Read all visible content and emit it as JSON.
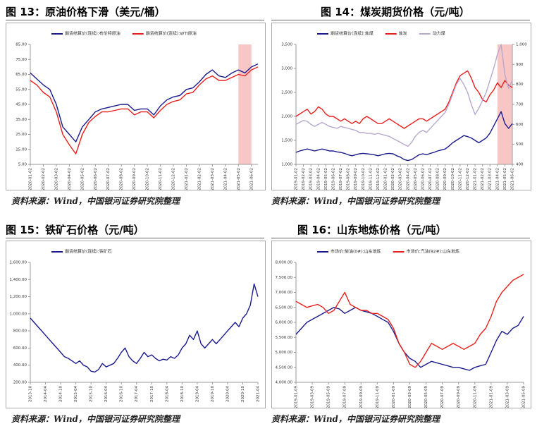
{
  "chart_data": [
    {
      "type": "line",
      "title": "图 13：原油价格下滑（美元/桶）",
      "source": "资料来源：Wind，中国银河证券研究院整理",
      "legend": "top",
      "categories": [
        "2020-01-02",
        null,
        "2020-02-02",
        null,
        "2020-03-02",
        null,
        "2020-04-02",
        null,
        "2020-05-02",
        null,
        "2020-06-02",
        null,
        "2020-07-02",
        null,
        "2020-08-02",
        null,
        "2020-09-02",
        null,
        "2020-10-02",
        null,
        "2020-11-02",
        null,
        "2020-12-02",
        null,
        "2021-01-02",
        null,
        "2021-02-02",
        null,
        "2021-03-02",
        null,
        "2021-04-02",
        null,
        "2021-05-02",
        null,
        "2021-06-02",
        null
      ],
      "series": [
        {
          "name": "期货结算价(连续):布伦特原油",
          "color": "#1a1a8c",
          "values": [
            66,
            62,
            58,
            55,
            45,
            30,
            25,
            20,
            30,
            35,
            40,
            42,
            43,
            44,
            45,
            45,
            41,
            42,
            42,
            38,
            44,
            48,
            50,
            51,
            55,
            56,
            60,
            65,
            68,
            64,
            63,
            66,
            68,
            66,
            70,
            72
          ]
        },
        {
          "name": "期货结算价(连续):WTI原油",
          "color": "#e8201c",
          "values": [
            61,
            58,
            53,
            50,
            40,
            25,
            18,
            12,
            25,
            33,
            37,
            40,
            40,
            41,
            42,
            42,
            38,
            40,
            40,
            36,
            41,
            45,
            47,
            48,
            52,
            53,
            58,
            62,
            64,
            61,
            61,
            63,
            65,
            64,
            68,
            70
          ]
        }
      ],
      "ylim": [
        5,
        85
      ],
      "yticks": [
        {
          "value": 5,
          "label": "5.00"
        },
        {
          "value": 15,
          "label": "15.00"
        },
        {
          "value": 25,
          "label": "25.00"
        },
        {
          "value": 35,
          "label": "35.00"
        },
        {
          "value": 45,
          "label": "45.00"
        },
        {
          "value": 55,
          "label": "55.00"
        },
        {
          "value": 65,
          "label": "65.00"
        },
        {
          "value": 75,
          "label": "75.00"
        },
        {
          "value": 85,
          "label": "85.00"
        }
      ],
      "highlight": [
        "2021-05-02",
        "2021-06-02"
      ],
      "highlight_color": "#f7b8b8"
    },
    {
      "type": "line",
      "title": "图 14：煤炭期货价格（元/吨）",
      "source": "资料来源：Wind，中国银河证券研究院整理",
      "legend": "top",
      "categories": [
        "2019-01-02",
        null,
        "2019-02-02",
        null,
        "2019-03-02",
        null,
        "2019-04-02",
        null,
        "2019-05-02",
        null,
        "2019-06-02",
        null,
        "2019-07-02",
        null,
        "2019-08-02",
        null,
        "2019-09-02",
        null,
        "2019-10-02",
        null,
        "2019-11-02",
        null,
        "2019-12-02",
        null,
        "2020-01-02",
        null,
        "2020-02-02",
        null,
        "2020-03-02",
        null,
        "2020-04-02",
        null,
        "2020-05-02",
        null,
        "2020-06-02",
        null,
        "2020-07-02",
        null,
        "2020-08-02",
        null,
        "2020-09-02",
        null,
        "2020-10-02",
        null,
        "2020-11-02",
        null,
        "2020-12-02",
        null,
        "2021-01-02",
        null,
        "2021-02-02",
        null,
        "2021-03-02",
        null,
        "2021-04-02",
        null,
        "2021-05-02",
        null,
        "2021-06-02"
      ],
      "series": [
        {
          "name": "期货结算价(连续):焦煤",
          "color": "#1a1a8c",
          "values": [
            1250,
            1280,
            1300,
            1320,
            1300,
            1280,
            1300,
            1320,
            1300,
            1280,
            1280,
            1260,
            1250,
            1230,
            1200,
            1180,
            1200,
            1220,
            1230,
            1220,
            1210,
            1200,
            1180,
            1200,
            1220,
            1230,
            1220,
            1180,
            1150,
            1100,
            1080,
            1100,
            1150,
            1200,
            1220,
            1200,
            1230,
            1250,
            1280,
            1300,
            1320,
            1380,
            1450,
            1500,
            1550,
            1600,
            1580,
            1550,
            1500,
            1450,
            1500,
            1550,
            1650,
            1800,
            1950,
            2100,
            1850,
            1750,
            1850
          ]
        },
        {
          "name": "焦炭",
          "color": "#e8201c",
          "values": [
            2000,
            2050,
            2100,
            2150,
            2050,
            2100,
            2200,
            2150,
            2050,
            2000,
            2000,
            1950,
            1900,
            1950,
            1900,
            1850,
            1900,
            1850,
            1950,
            2000,
            1950,
            1900,
            1850,
            1850,
            1900,
            1950,
            1900,
            1850,
            1800,
            1750,
            1800,
            1850,
            1900,
            1950,
            1950,
            1900,
            1950,
            2000,
            2050,
            2100,
            2150,
            2300,
            2500,
            2700,
            2850,
            2900,
            2950,
            2800,
            2600,
            2500,
            2350,
            2300,
            2450,
            2550,
            2700,
            2600,
            2750,
            2650,
            2600
          ]
        },
        {
          "name": "动力煤",
          "color": "#b8a8d0",
          "axis": "y2",
          "values": [
            600,
            610,
            620,
            615,
            600,
            590,
            600,
            610,
            600,
            590,
            585,
            580,
            590,
            585,
            580,
            575,
            570,
            560,
            560,
            555,
            555,
            550,
            555,
            550,
            545,
            540,
            530,
            520,
            510,
            500,
            490,
            510,
            540,
            560,
            570,
            560,
            580,
            600,
            620,
            640,
            660,
            700,
            750,
            800,
            830,
            800,
            760,
            700,
            650,
            680,
            720,
            760,
            820,
            880,
            950,
            1000,
            850,
            780,
            820
          ]
        }
      ],
      "ylim": [
        1000,
        3500
      ],
      "yticks": [
        {
          "value": 1000,
          "label": "1,000"
        },
        {
          "value": 1500,
          "label": "1,500"
        },
        {
          "value": 2000,
          "label": "2,000"
        },
        {
          "value": 2500,
          "label": "2,500"
        },
        {
          "value": 3000,
          "label": "3,000"
        },
        {
          "value": 3500,
          "label": "3,500"
        }
      ],
      "y2lim": [
        400,
        1000
      ],
      "y2ticks": [
        400,
        500,
        600,
        700,
        800,
        900,
        {
          "value": 1000,
          "label": "1,000"
        }
      ],
      "highlight": [
        "2021-04-02",
        "2021-06-02"
      ],
      "highlight_color": "#f7b8b8"
    },
    {
      "type": "line",
      "title": "图 15：铁矿石价格（元/吨）",
      "source": "资料来源：Wind，中国银河证券研究院整理",
      "legend": "top",
      "categories": [
        "2013-10",
        null,
        null,
        null,
        "2014-04",
        null,
        null,
        null,
        "2014-10",
        null,
        null,
        null,
        "2015-04",
        null,
        null,
        null,
        "2015-10",
        null,
        null,
        null,
        "2016-04",
        null,
        null,
        null,
        "2016-10",
        null,
        null,
        null,
        "2017-04",
        null,
        null,
        null,
        "2017-10",
        null,
        null,
        null,
        "2018-04",
        null,
        null,
        null,
        "2018-10",
        null,
        null,
        null,
        "2019-04",
        null,
        null,
        null,
        "2019-10",
        null,
        null,
        null,
        "2020-04",
        null,
        null,
        null,
        "2020-10",
        null,
        null,
        null,
        "2021-04"
      ],
      "series": [
        {
          "name": "期货结算价(连续):铁矿石",
          "color": "#1a1a8c",
          "values": [
            950,
            900,
            850,
            800,
            750,
            700,
            650,
            600,
            550,
            500,
            480,
            450,
            420,
            450,
            400,
            380,
            330,
            320,
            350,
            420,
            380,
            400,
            420,
            480,
            550,
            600,
            500,
            450,
            420,
            480,
            550,
            500,
            520,
            480,
            450,
            470,
            460,
            500,
            480,
            520,
            600,
            650,
            750,
            700,
            800,
            650,
            600,
            650,
            700,
            650,
            700,
            750,
            800,
            850,
            900,
            850,
            950,
            1000,
            1100,
            1350,
            1200
          ]
        }
      ],
      "ylim": [
        200,
        1600
      ],
      "yticks": [
        {
          "value": 200,
          "label": "200.00"
        },
        {
          "value": 400,
          "label": "400.00"
        },
        {
          "value": 600,
          "label": "600.00"
        },
        {
          "value": 800,
          "label": "800.00"
        },
        {
          "value": 1000,
          "label": "1,000.00"
        },
        {
          "value": 1200,
          "label": "1,200.00"
        },
        {
          "value": 1400,
          "label": "1,400.00"
        },
        {
          "value": 1600,
          "label": "1,600.00"
        }
      ]
    },
    {
      "type": "line",
      "title": "图 16：山东地炼价格（元/吨）",
      "source": "资料来源：Wind，中国银河证券研究院整理",
      "legend": "top",
      "categories": [
        "2019-01-09",
        null,
        null,
        "2019-03-09",
        null,
        null,
        "2019-05-09",
        null,
        null,
        "2019-07-09",
        null,
        null,
        "2019-09-09",
        null,
        null,
        "2019-11-09",
        null,
        null,
        "2020-01-09",
        null,
        null,
        "2020-03-09",
        null,
        null,
        "2020-05-09",
        null,
        null,
        "2020-07-09",
        null,
        null,
        "2020-09-09",
        null,
        null,
        "2020-11-09",
        null,
        null,
        "2021-01-09",
        null,
        null,
        "2021-03-09",
        null,
        null,
        "2021-05-09"
      ],
      "series": [
        {
          "name": "市场价:柴油(0#):山东地炼",
          "color": "#1a1a8c",
          "values": [
            5600,
            5800,
            6000,
            6100,
            6200,
            6300,
            6400,
            6500,
            6450,
            6300,
            6400,
            6500,
            6400,
            6350,
            6300,
            6200,
            6100,
            6000,
            5700,
            5300,
            5000,
            4800,
            4700,
            4500,
            4600,
            4700,
            4650,
            4600,
            4550,
            4500,
            4500,
            4450,
            4400,
            4500,
            4550,
            4600,
            5000,
            5400,
            5700,
            5600,
            5800,
            5900,
            6200
          ]
        },
        {
          "name": "市场价:汽油(92#):山东地炼",
          "color": "#e8201c",
          "values": [
            6700,
            6600,
            6500,
            6550,
            6600,
            6500,
            6300,
            6400,
            6700,
            7000,
            6600,
            6500,
            6400,
            6400,
            6300,
            6300,
            6200,
            6100,
            5800,
            5300,
            5000,
            4600,
            4500,
            4700,
            5000,
            5300,
            5200,
            5100,
            5200,
            5300,
            5200,
            5100,
            5200,
            5300,
            5600,
            5800,
            6200,
            6700,
            7000,
            7200,
            7400,
            7500,
            7600
          ]
        }
      ],
      "ylim": [
        4000,
        8000
      ],
      "yticks": [
        {
          "value": 4000,
          "label": "4,000.00"
        },
        {
          "value": 4500,
          "label": "4,500.00"
        },
        {
          "value": 5000,
          "label": "5,000.00"
        },
        {
          "value": 5500,
          "label": "5,500.00"
        },
        {
          "value": 6000,
          "label": "6,000.00"
        },
        {
          "value": 6500,
          "label": "6,500.00"
        },
        {
          "value": 7000,
          "label": "7,000.00"
        },
        {
          "value": 7500,
          "label": "7,500.00"
        },
        {
          "value": 8000,
          "label": "8,000.00"
        }
      ]
    }
  ]
}
